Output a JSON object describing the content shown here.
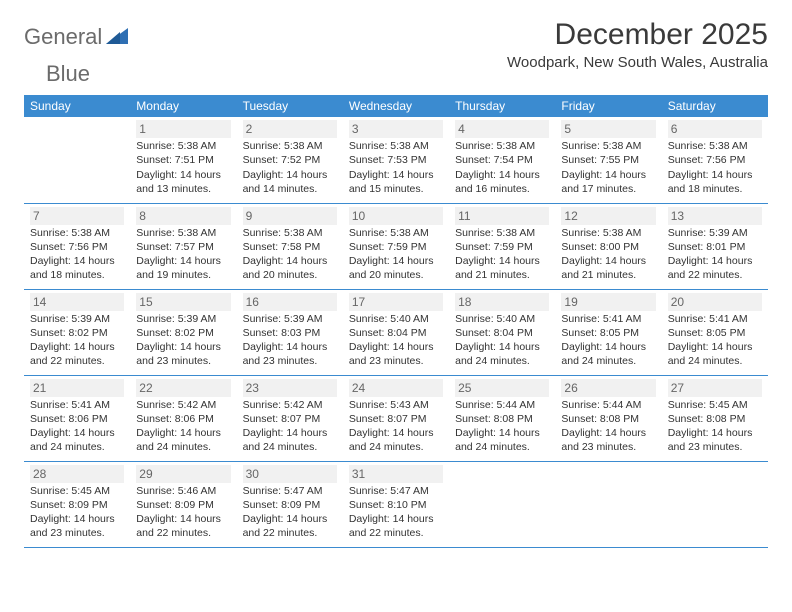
{
  "logo": {
    "word1": "General",
    "word2": "Blue"
  },
  "header": {
    "title": "December 2025",
    "location": "Woodpark, New South Wales, Australia"
  },
  "colors": {
    "header_bg": "#3b8bd0",
    "header_text": "#ffffff",
    "cell_border": "#3b8bd0",
    "daynum_bg": "#f1f1f1",
    "daynum_text": "#666666",
    "body_text": "#333333",
    "logo_text": "#6b6b6b",
    "title_text": "#3a3a3a",
    "logo_accent": "#2f6fb3"
  },
  "weekdays": [
    "Sunday",
    "Monday",
    "Tuesday",
    "Wednesday",
    "Thursday",
    "Friday",
    "Saturday"
  ],
  "weeks": [
    [
      null,
      {
        "n": "1",
        "sr": "Sunrise: 5:38 AM",
        "ss": "Sunset: 7:51 PM",
        "d1": "Daylight: 14 hours",
        "d2": "and 13 minutes."
      },
      {
        "n": "2",
        "sr": "Sunrise: 5:38 AM",
        "ss": "Sunset: 7:52 PM",
        "d1": "Daylight: 14 hours",
        "d2": "and 14 minutes."
      },
      {
        "n": "3",
        "sr": "Sunrise: 5:38 AM",
        "ss": "Sunset: 7:53 PM",
        "d1": "Daylight: 14 hours",
        "d2": "and 15 minutes."
      },
      {
        "n": "4",
        "sr": "Sunrise: 5:38 AM",
        "ss": "Sunset: 7:54 PM",
        "d1": "Daylight: 14 hours",
        "d2": "and 16 minutes."
      },
      {
        "n": "5",
        "sr": "Sunrise: 5:38 AM",
        "ss": "Sunset: 7:55 PM",
        "d1": "Daylight: 14 hours",
        "d2": "and 17 minutes."
      },
      {
        "n": "6",
        "sr": "Sunrise: 5:38 AM",
        "ss": "Sunset: 7:56 PM",
        "d1": "Daylight: 14 hours",
        "d2": "and 18 minutes."
      }
    ],
    [
      {
        "n": "7",
        "sr": "Sunrise: 5:38 AM",
        "ss": "Sunset: 7:56 PM",
        "d1": "Daylight: 14 hours",
        "d2": "and 18 minutes."
      },
      {
        "n": "8",
        "sr": "Sunrise: 5:38 AM",
        "ss": "Sunset: 7:57 PM",
        "d1": "Daylight: 14 hours",
        "d2": "and 19 minutes."
      },
      {
        "n": "9",
        "sr": "Sunrise: 5:38 AM",
        "ss": "Sunset: 7:58 PM",
        "d1": "Daylight: 14 hours",
        "d2": "and 20 minutes."
      },
      {
        "n": "10",
        "sr": "Sunrise: 5:38 AM",
        "ss": "Sunset: 7:59 PM",
        "d1": "Daylight: 14 hours",
        "d2": "and 20 minutes."
      },
      {
        "n": "11",
        "sr": "Sunrise: 5:38 AM",
        "ss": "Sunset: 7:59 PM",
        "d1": "Daylight: 14 hours",
        "d2": "and 21 minutes."
      },
      {
        "n": "12",
        "sr": "Sunrise: 5:38 AM",
        "ss": "Sunset: 8:00 PM",
        "d1": "Daylight: 14 hours",
        "d2": "and 21 minutes."
      },
      {
        "n": "13",
        "sr": "Sunrise: 5:39 AM",
        "ss": "Sunset: 8:01 PM",
        "d1": "Daylight: 14 hours",
        "d2": "and 22 minutes."
      }
    ],
    [
      {
        "n": "14",
        "sr": "Sunrise: 5:39 AM",
        "ss": "Sunset: 8:02 PM",
        "d1": "Daylight: 14 hours",
        "d2": "and 22 minutes."
      },
      {
        "n": "15",
        "sr": "Sunrise: 5:39 AM",
        "ss": "Sunset: 8:02 PM",
        "d1": "Daylight: 14 hours",
        "d2": "and 23 minutes."
      },
      {
        "n": "16",
        "sr": "Sunrise: 5:39 AM",
        "ss": "Sunset: 8:03 PM",
        "d1": "Daylight: 14 hours",
        "d2": "and 23 minutes."
      },
      {
        "n": "17",
        "sr": "Sunrise: 5:40 AM",
        "ss": "Sunset: 8:04 PM",
        "d1": "Daylight: 14 hours",
        "d2": "and 23 minutes."
      },
      {
        "n": "18",
        "sr": "Sunrise: 5:40 AM",
        "ss": "Sunset: 8:04 PM",
        "d1": "Daylight: 14 hours",
        "d2": "and 24 minutes."
      },
      {
        "n": "19",
        "sr": "Sunrise: 5:41 AM",
        "ss": "Sunset: 8:05 PM",
        "d1": "Daylight: 14 hours",
        "d2": "and 24 minutes."
      },
      {
        "n": "20",
        "sr": "Sunrise: 5:41 AM",
        "ss": "Sunset: 8:05 PM",
        "d1": "Daylight: 14 hours",
        "d2": "and 24 minutes."
      }
    ],
    [
      {
        "n": "21",
        "sr": "Sunrise: 5:41 AM",
        "ss": "Sunset: 8:06 PM",
        "d1": "Daylight: 14 hours",
        "d2": "and 24 minutes."
      },
      {
        "n": "22",
        "sr": "Sunrise: 5:42 AM",
        "ss": "Sunset: 8:06 PM",
        "d1": "Daylight: 14 hours",
        "d2": "and 24 minutes."
      },
      {
        "n": "23",
        "sr": "Sunrise: 5:42 AM",
        "ss": "Sunset: 8:07 PM",
        "d1": "Daylight: 14 hours",
        "d2": "and 24 minutes."
      },
      {
        "n": "24",
        "sr": "Sunrise: 5:43 AM",
        "ss": "Sunset: 8:07 PM",
        "d1": "Daylight: 14 hours",
        "d2": "and 24 minutes."
      },
      {
        "n": "25",
        "sr": "Sunrise: 5:44 AM",
        "ss": "Sunset: 8:08 PM",
        "d1": "Daylight: 14 hours",
        "d2": "and 24 minutes."
      },
      {
        "n": "26",
        "sr": "Sunrise: 5:44 AM",
        "ss": "Sunset: 8:08 PM",
        "d1": "Daylight: 14 hours",
        "d2": "and 23 minutes."
      },
      {
        "n": "27",
        "sr": "Sunrise: 5:45 AM",
        "ss": "Sunset: 8:08 PM",
        "d1": "Daylight: 14 hours",
        "d2": "and 23 minutes."
      }
    ],
    [
      {
        "n": "28",
        "sr": "Sunrise: 5:45 AM",
        "ss": "Sunset: 8:09 PM",
        "d1": "Daylight: 14 hours",
        "d2": "and 23 minutes."
      },
      {
        "n": "29",
        "sr": "Sunrise: 5:46 AM",
        "ss": "Sunset: 8:09 PM",
        "d1": "Daylight: 14 hours",
        "d2": "and 22 minutes."
      },
      {
        "n": "30",
        "sr": "Sunrise: 5:47 AM",
        "ss": "Sunset: 8:09 PM",
        "d1": "Daylight: 14 hours",
        "d2": "and 22 minutes."
      },
      {
        "n": "31",
        "sr": "Sunrise: 5:47 AM",
        "ss": "Sunset: 8:10 PM",
        "d1": "Daylight: 14 hours",
        "d2": "and 22 minutes."
      },
      null,
      null,
      null
    ]
  ]
}
